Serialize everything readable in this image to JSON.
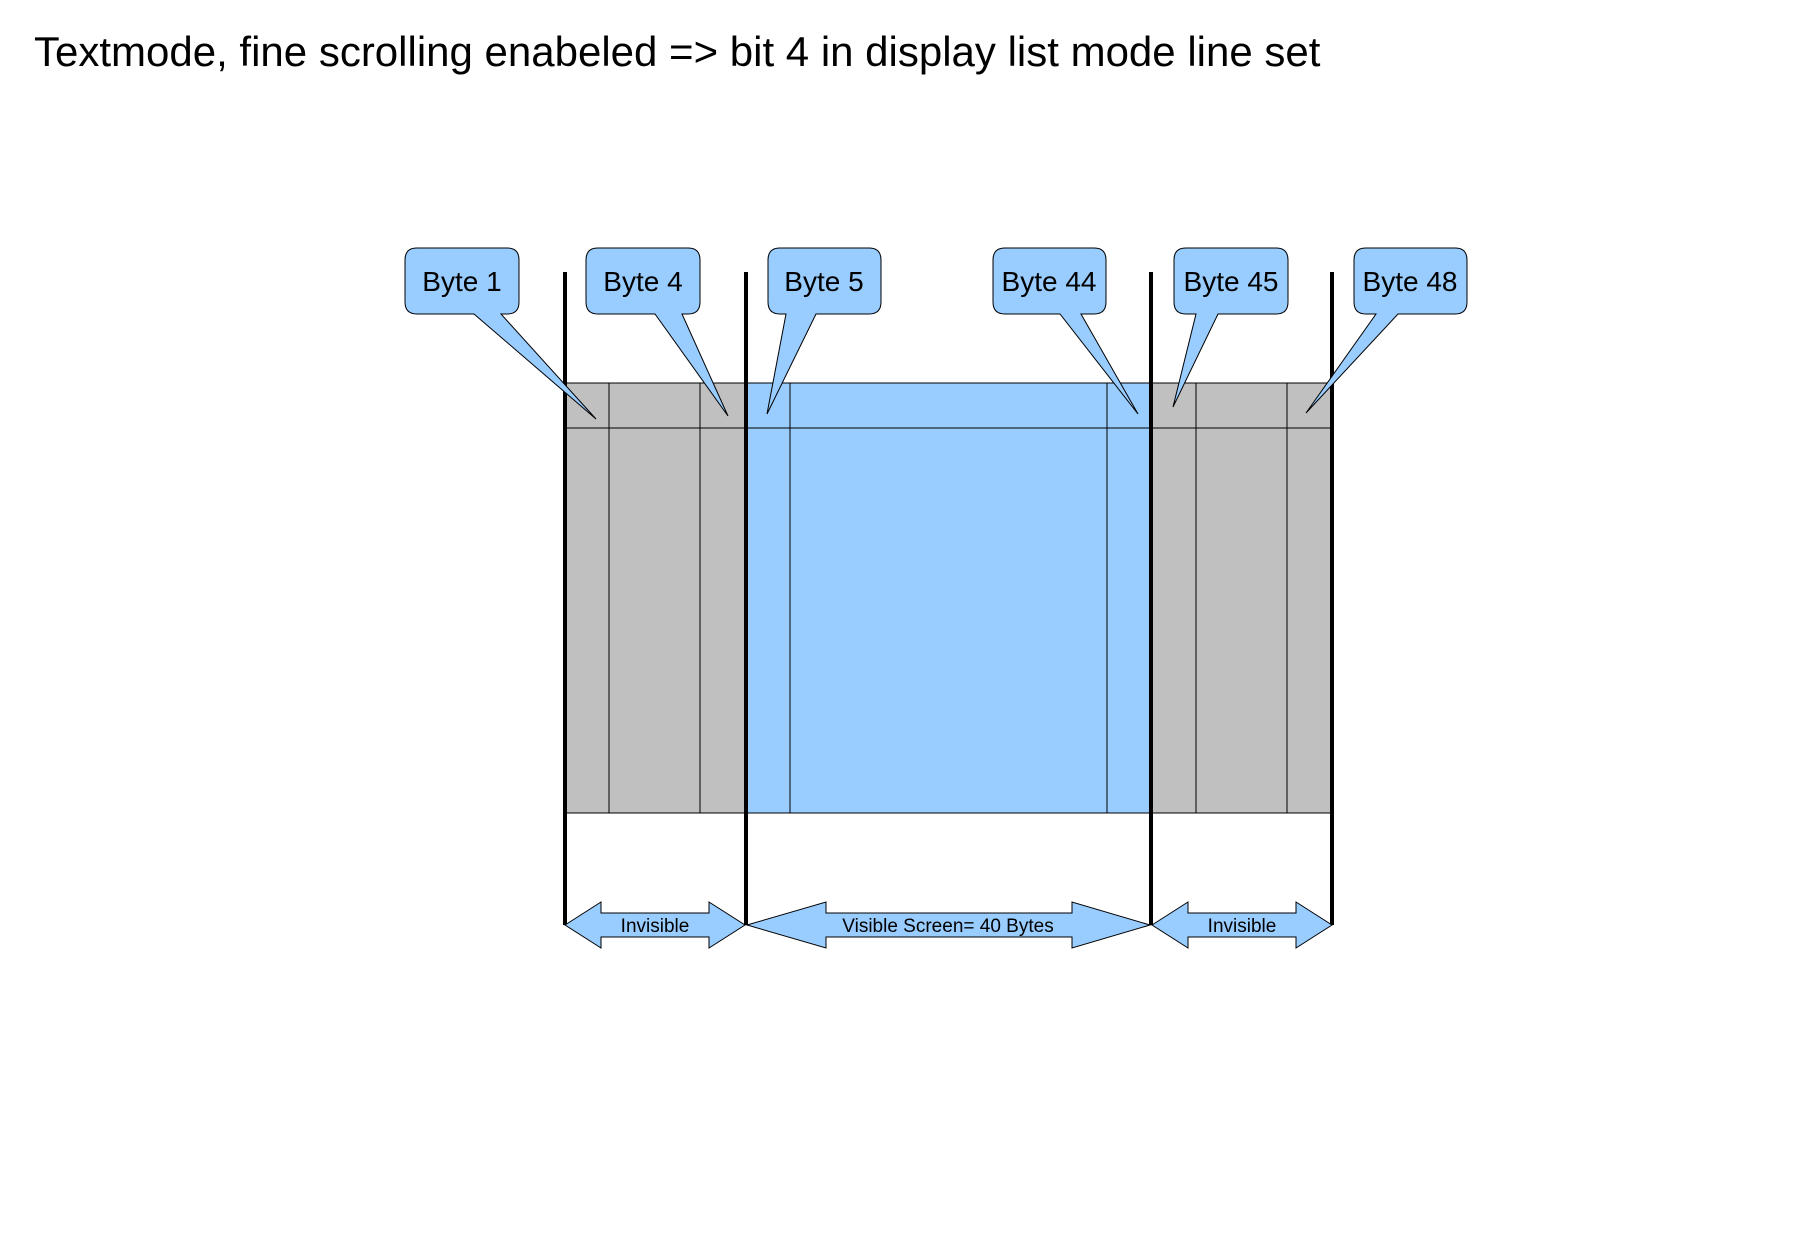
{
  "title": "Textmode, fine scrolling enabeled => bit 4 in display list mode line set",
  "colors": {
    "visible": "#99ccff",
    "invisible": "#c0c0c0",
    "outline": "#000000",
    "callout_fill": "#99ccff"
  },
  "callouts": [
    {
      "label": "Byte 1"
    },
    {
      "label": "Byte 4"
    },
    {
      "label": "Byte 5"
    },
    {
      "label": "Byte 44"
    },
    {
      "label": "Byte 45"
    },
    {
      "label": "Byte 48"
    }
  ],
  "arrows": [
    {
      "label": "Invisible"
    },
    {
      "label": "Visible Screen= 40 Bytes"
    },
    {
      "label": "Invisible"
    }
  ]
}
